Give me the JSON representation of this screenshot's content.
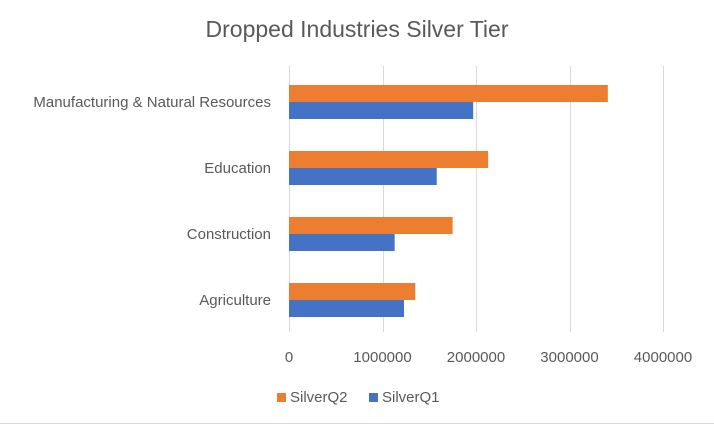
{
  "chart_data": {
    "type": "bar",
    "orientation": "horizontal",
    "title": "Dropped Industries Silver Tier",
    "categories": [
      "Agriculture",
      "Construction",
      "Education",
      "Manufacturing & Natural Resources"
    ],
    "series": [
      {
        "name": "SilverQ1",
        "color": "#4472c4",
        "values": [
          1230000,
          1130000,
          1580000,
          1970000
        ]
      },
      {
        "name": "SilverQ2",
        "color": "#ed7d31",
        "values": [
          1350000,
          1750000,
          2130000,
          3410000
        ]
      }
    ],
    "xlim": [
      0,
      4000000
    ],
    "xticks": [
      0,
      1000000,
      2000000,
      3000000,
      4000000
    ],
    "xtick_labels": [
      "0",
      "1000000",
      "2000000",
      "3000000",
      "4000000"
    ],
    "grid": true,
    "legend": {
      "position": "bottom",
      "order": [
        "SilverQ2",
        "SilverQ1"
      ]
    }
  }
}
